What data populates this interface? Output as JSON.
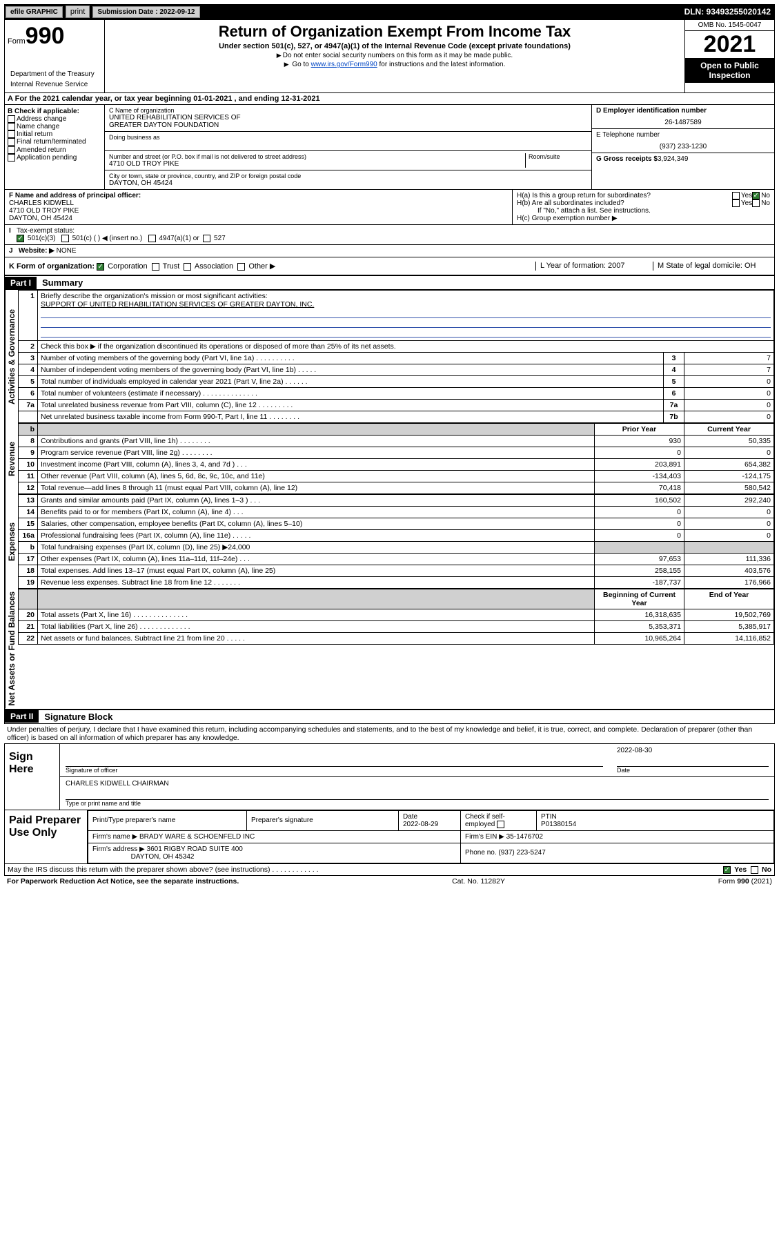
{
  "topbar": {
    "efile": "efile GRAPHIC",
    "print": "print",
    "sub_label": "Submission Date :",
    "sub_date": "2022-09-12",
    "dln": "DLN: 93493255020142"
  },
  "header": {
    "form_word": "Form",
    "form_num": "990",
    "title": "Return of Organization Exempt From Income Tax",
    "subtitle": "Under section 501(c), 527, or 4947(a)(1) of the Internal Revenue Code (except private foundations)",
    "note1": "Do not enter social security numbers on this form as it may be made public.",
    "note2_pre": "Go to ",
    "note2_link": "www.irs.gov/Form990",
    "note2_post": " for instructions and the latest information.",
    "dept1": "Department of the Treasury",
    "dept2": "Internal Revenue Service",
    "omb": "OMB No. 1545-0047",
    "year": "2021",
    "open": "Open to Public Inspection"
  },
  "rowA": "For the 2021 calendar year, or tax year beginning 01-01-2021   , and ending 12-31-2021",
  "colB": {
    "title": "B Check if applicable:",
    "items": [
      "Address change",
      "Name change",
      "Initial return",
      "Final return/terminated",
      "Amended return",
      "Application pending"
    ]
  },
  "colC": {
    "name_label": "C Name of organization",
    "name1": "UNITED REHABILITATION SERVICES OF",
    "name2": "GREATER DAYTON FOUNDATION",
    "dba": "Doing business as",
    "addr_label": "Number and street (or P.O. box if mail is not delivered to street address)",
    "room": "Room/suite",
    "addr": "4710 OLD TROY PIKE",
    "city_label": "City or town, state or province, country, and ZIP or foreign postal code",
    "city": "DAYTON, OH  45424"
  },
  "colD": {
    "ein_label": "D Employer identification number",
    "ein": "26-1487589",
    "tel_label": "E Telephone number",
    "tel": "(937) 233-1230",
    "gross_label": "G Gross receipts $",
    "gross": "3,924,349"
  },
  "rowFH": {
    "f_label": "F  Name and address of principal officer:",
    "f_name": "CHARLES KIDWELL",
    "f_addr1": "4710 OLD TROY PIKE",
    "f_addr2": "DAYTON, OH  45424",
    "ha": "H(a)  Is this a group return for subordinates?",
    "hb": "H(b)  Are all subordinates included?",
    "hb_note": "If \"No,\" attach a list. See instructions.",
    "hc": "H(c)  Group exemption number ▶",
    "yes": "Yes",
    "no": "No"
  },
  "rowI": {
    "label": "Tax-exempt status:",
    "opt501c3": "501(c)(3)",
    "opt501c": "501(c) (    ) ◀ (insert no.)",
    "opt4947": "4947(a)(1) or",
    "opt527": "527"
  },
  "rowJ": {
    "label": "Website: ▶",
    "val": "NONE"
  },
  "rowK": {
    "label": "K Form of organization:",
    "corp": "Corporation",
    "trust": "Trust",
    "assoc": "Association",
    "other": "Other ▶",
    "l": "L Year of formation: 2007",
    "m": "M State of legal domicile: OH"
  },
  "part1": {
    "hdr": "Part I",
    "title": "Summary"
  },
  "summary": {
    "l1_label": "Briefly describe the organization's mission or most significant activities:",
    "l1_text": "SUPPORT OF UNITED REHABILITATION SERVICES OF GREATER DAYTON, INC.",
    "l2": "Check this box ▶      if the organization discontinued its operations or disposed of more than 25% of its net assets.",
    "rows_gov": [
      {
        "n": "3",
        "t": "Number of voting members of the governing body (Part VI, line 1a)  .   .   .   .   .   .   .   .   .   .",
        "ln": "3",
        "v": "7"
      },
      {
        "n": "4",
        "t": "Number of independent voting members of the governing body (Part VI, line 1b)   .   .   .   .   .",
        "ln": "4",
        "v": "7"
      },
      {
        "n": "5",
        "t": "Total number of individuals employed in calendar year 2021 (Part V, line 2a)    .   .   .   .   .   .",
        "ln": "5",
        "v": "0"
      },
      {
        "n": "6",
        "t": "Total number of volunteers (estimate if necessary)   .   .   .   .   .   .   .   .   .   .   .   .   .   .",
        "ln": "6",
        "v": "0"
      },
      {
        "n": "7a",
        "t": "Total unrelated business revenue from Part VIII, column (C), line 12   .   .   .   .   .   .   .   .   .",
        "ln": "7a",
        "v": "0"
      },
      {
        "n": "",
        "t": "Net unrelated business taxable income from Form 990-T, Part I, line 11   .   .   .   .   .   .   .   .",
        "ln": "7b",
        "v": "0"
      }
    ],
    "hdr_prior": "Prior Year",
    "hdr_curr": "Current Year",
    "rows_rev": [
      {
        "n": "8",
        "t": "Contributions and grants (Part VIII, line 1h)   .   .   .   .   .   .   .   .",
        "p": "930",
        "c": "50,335"
      },
      {
        "n": "9",
        "t": "Program service revenue (Part VIII, line 2g)   .   .   .   .   .   .   .   .",
        "p": "0",
        "c": "0"
      },
      {
        "n": "10",
        "t": "Investment income (Part VIII, column (A), lines 3, 4, and 7d )   .   .   .",
        "p": "203,891",
        "c": "654,382"
      },
      {
        "n": "11",
        "t": "Other revenue (Part VIII, column (A), lines 5, 6d, 8c, 9c, 10c, and 11e)",
        "p": "-134,403",
        "c": "-124,175"
      },
      {
        "n": "12",
        "t": "Total revenue—add lines 8 through 11 (must equal Part VIII, column (A), line 12)",
        "p": "70,418",
        "c": "580,542"
      }
    ],
    "rows_exp": [
      {
        "n": "13",
        "t": "Grants and similar amounts paid (Part IX, column (A), lines 1–3 )   .   .   .",
        "p": "160,502",
        "c": "292,240"
      },
      {
        "n": "14",
        "t": "Benefits paid to or for members (Part IX, column (A), line 4)    .   .   .",
        "p": "0",
        "c": "0"
      },
      {
        "n": "15",
        "t": "Salaries, other compensation, employee benefits (Part IX, column (A), lines 5–10)",
        "p": "0",
        "c": "0"
      },
      {
        "n": "16a",
        "t": "Professional fundraising fees (Part IX, column (A), line 11e)   .   .   .   .   .",
        "p": "0",
        "c": "0"
      },
      {
        "n": "b",
        "t": "Total fundraising expenses (Part IX, column (D), line 25) ▶24,000",
        "p": "",
        "c": "",
        "shade": true
      },
      {
        "n": "17",
        "t": "Other expenses (Part IX, column (A), lines 11a–11d, 11f–24e)   .   .   .",
        "p": "97,653",
        "c": "111,336"
      },
      {
        "n": "18",
        "t": "Total expenses. Add lines 13–17 (must equal Part IX, column (A), line 25)",
        "p": "258,155",
        "c": "403,576"
      },
      {
        "n": "19",
        "t": "Revenue less expenses. Subtract line 18 from line 12   .   .   .   .   .   .   .",
        "p": "-187,737",
        "c": "176,966"
      }
    ],
    "hdr_beg": "Beginning of Current Year",
    "hdr_end": "End of Year",
    "rows_na": [
      {
        "n": "20",
        "t": "Total assets (Part X, line 16)   .   .   .   .   .   .   .   .   .   .   .   .   .   .",
        "p": "16,318,635",
        "c": "19,502,769"
      },
      {
        "n": "21",
        "t": "Total liabilities (Part X, line 26)   .   .   .   .   .   .   .   .   .   .   .   .   .",
        "p": "5,353,371",
        "c": "5,385,917"
      },
      {
        "n": "22",
        "t": "Net assets or fund balances. Subtract line 21 from line 20   .   .   .   .   .",
        "p": "10,965,264",
        "c": "14,116,852"
      }
    ]
  },
  "vtabs": {
    "gov": "Activities & Governance",
    "rev": "Revenue",
    "exp": "Expenses",
    "na": "Net Assets or Fund Balances"
  },
  "part2": {
    "hdr": "Part II",
    "title": "Signature Block"
  },
  "declare": "Under penalties of perjury, I declare that I have examined this return, including accompanying schedules and statements, and to the best of my knowledge and belief, it is true, correct, and complete. Declaration of preparer (other than officer) is based on all information of which preparer has any knowledge.",
  "sign": {
    "here": "Sign Here",
    "sig_of": "Signature of officer",
    "date": "Date",
    "date_val": "2022-08-30",
    "name": "CHARLES KIDWELL  CHAIRMAN",
    "name_lbl": "Type or print name and title"
  },
  "paid": {
    "title": "Paid Preparer Use Only",
    "h1": "Print/Type preparer's name",
    "h2": "Preparer's signature",
    "h3": "Date",
    "h3v": "2022-08-29",
    "h4": "Check       if self-employed",
    "h5": "PTIN",
    "h5v": "P01380154",
    "firm_name_l": "Firm's name     ▶",
    "firm_name": "BRADY WARE & SCHOENFELD INC",
    "firm_ein_l": "Firm's EIN ▶",
    "firm_ein": "35-1476702",
    "firm_addr_l": "Firm's address ▶",
    "firm_addr1": "3601 RIGBY ROAD SUITE 400",
    "firm_addr2": "DAYTON, OH  45342",
    "phone_l": "Phone no.",
    "phone": "(937) 223-5247"
  },
  "footer": {
    "discuss": "May the IRS discuss this return with the preparer shown above? (see instructions)   .   .   .   .   .   .   .   .   .   .   .   .",
    "yes": "Yes",
    "no": "No",
    "pra": "For Paperwork Reduction Act Notice, see the separate instructions.",
    "cat": "Cat. No. 11282Y",
    "form": "Form 990 (2021)"
  }
}
